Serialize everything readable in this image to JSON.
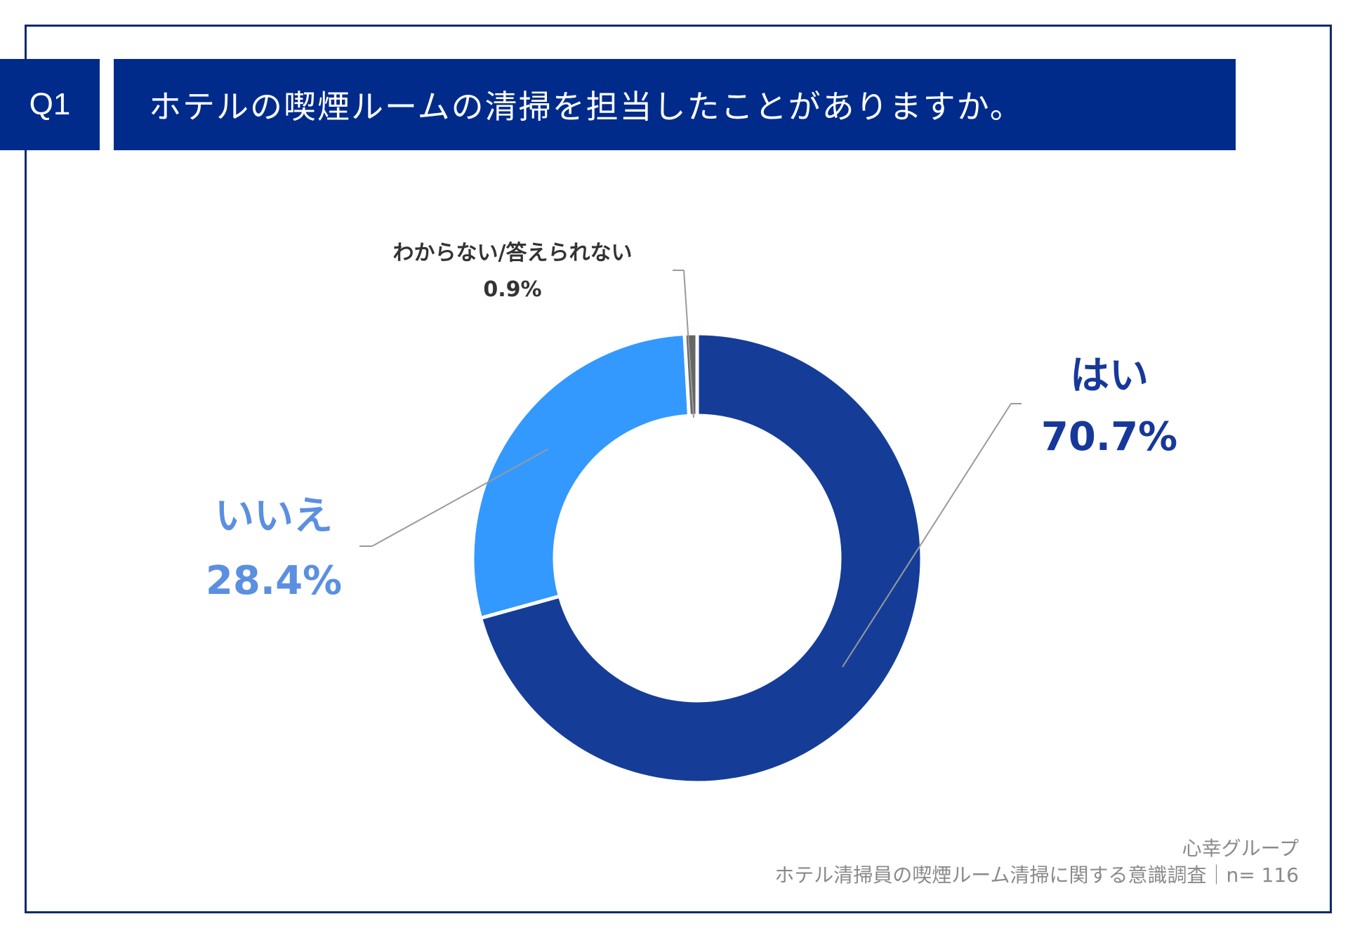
{
  "header": {
    "badge": "Q1",
    "question": "ホテルの喫煙ルームの清掃を担当したことがありますか。"
  },
  "chart_data": {
    "type": "pie",
    "variant": "donut",
    "categories": [
      "はい",
      "いいえ",
      "わからない/答えられない"
    ],
    "values": [
      70.7,
      28.4,
      0.9
    ],
    "labels": {
      "yes_name": "はい",
      "yes_pct": "70.7%",
      "no_name": "いいえ",
      "no_pct": "28.4%",
      "dk_name": "わからない/答えられない",
      "dk_pct": "0.9%"
    },
    "colors": [
      "#153d98",
      "#3399ff",
      "#666666"
    ]
  },
  "footer": {
    "org": "心幸グループ",
    "survey": "ホテル清掃員の喫煙ルーム清掃に関する意識調査｜n= 116"
  }
}
